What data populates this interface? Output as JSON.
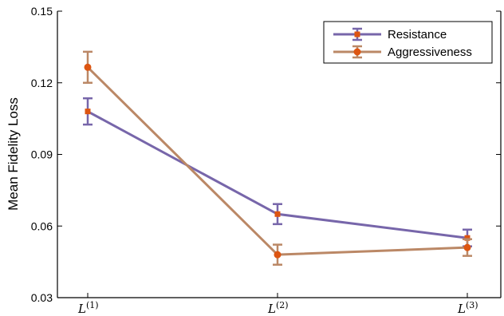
{
  "chart_data": {
    "type": "line",
    "title": "",
    "xlabel": "",
    "ylabel": "Mean Fidelity Loss",
    "categories": [
      "1",
      "2",
      "3"
    ],
    "category_symbol": "L",
    "ylim": [
      0.03,
      0.15
    ],
    "yticks": [
      "0.03",
      "0.06",
      "0.09",
      "0.12",
      "0.15"
    ],
    "grid": false,
    "legend_position": "top-right",
    "series": [
      {
        "name": "Resistance",
        "color": "#7766aa",
        "marker_color": "#dd5511",
        "marker": "square",
        "values": [
          0.108,
          0.065,
          0.055
        ],
        "errors": [
          0.0055,
          0.0042,
          0.0035
        ]
      },
      {
        "name": "Aggressiveness",
        "color": "#bb8866",
        "marker_color": "#dd5511",
        "marker": "circle",
        "values": [
          0.1265,
          0.048,
          0.051
        ],
        "errors": [
          0.0065,
          0.0042,
          0.0035
        ]
      }
    ]
  }
}
